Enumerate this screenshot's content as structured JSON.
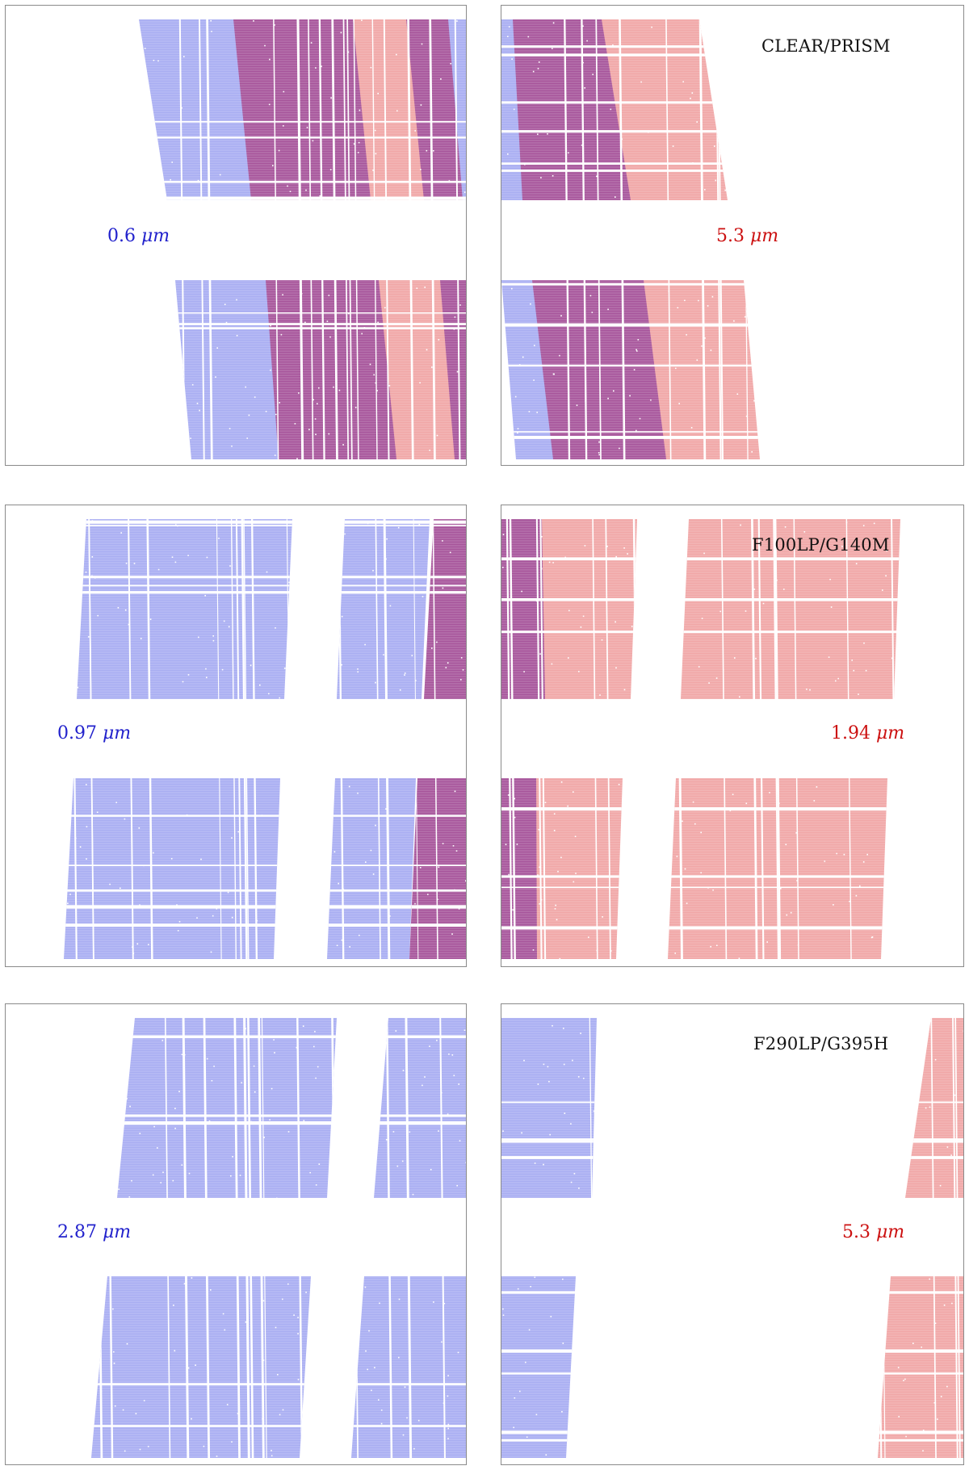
{
  "colors": {
    "blue": "#a9aef2",
    "red": "#f1a7a7",
    "overlap": "#a7559b",
    "stripe": "#ffffff",
    "blue_text": "#2222cc",
    "red_text": "#cc1111",
    "frame": "#8a8a8a"
  },
  "configurations": [
    {
      "id": "prism",
      "label": "CLEAR/PRISM",
      "left_wavelength": {
        "value": "0.6",
        "unit": "μm"
      },
      "right_wavelength": {
        "value": "5.3",
        "unit": "μm"
      }
    },
    {
      "id": "g140m",
      "label": "F100LP/G140M",
      "left_wavelength": {
        "value": "0.97",
        "unit": "μm"
      },
      "right_wavelength": {
        "value": "1.94",
        "unit": "μm"
      }
    },
    {
      "id": "g395h",
      "label": "F290LP/G395H",
      "left_wavelength": {
        "value": "2.87",
        "unit": "μm"
      },
      "right_wavelength": {
        "value": "5.3",
        "unit": "μm"
      }
    }
  ]
}
